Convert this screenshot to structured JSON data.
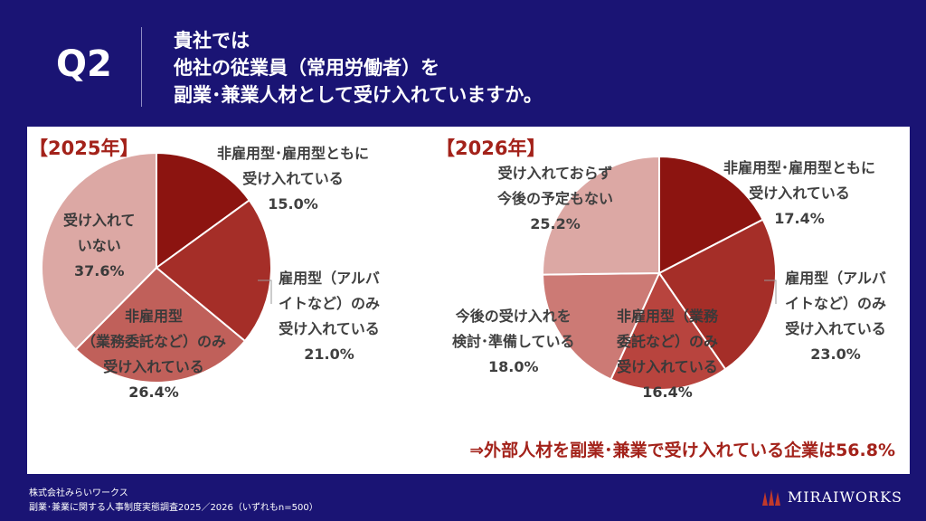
{
  "header": {
    "q_label": "Q2",
    "question_lines": [
      "貴社では",
      "他社の従業員（常用労働者）を",
      "副業･兼業人材として受け入れていますか。"
    ]
  },
  "conclusion": "⇒外部人材を副業･兼業で受け入れている企業は56.8%",
  "footer": {
    "company": "株式会社みらいワークス",
    "source": "副業･兼業に関する人事制度実態調査2025／2026（いずれもn=500）"
  },
  "logo": {
    "text": "MIRAIWORKS",
    "icon": "miraiworks-logo-icon"
  },
  "chart_data": [
    {
      "type": "pie",
      "title": "【2025年】",
      "slices": [
        {
          "label_lines": [
            "非雇用型･雇用型ともに",
            "受け入れている"
          ],
          "value": 15.0,
          "pct_text": "15.0%",
          "color": "#8c1410"
        },
        {
          "label_lines": [
            "雇用型（アルバ",
            "イトなど）のみ",
            "受け入れている"
          ],
          "value": 21.0,
          "pct_text": "21.0%",
          "color": "#a52e28"
        },
        {
          "label_lines": [
            "非雇用型",
            "（業務委託など）のみ",
            "受け入れている"
          ],
          "value": 26.4,
          "pct_text": "26.4%",
          "color": "#c0605a"
        },
        {
          "label_lines": [
            "受け入れて",
            "いない"
          ],
          "value": 37.6,
          "pct_text": "37.6%",
          "color": "#dca8a4"
        }
      ]
    },
    {
      "type": "pie",
      "title": "【2026年】",
      "slices": [
        {
          "label_lines": [
            "非雇用型･雇用型ともに",
            "受け入れている"
          ],
          "value": 17.4,
          "pct_text": "17.4%",
          "color": "#8c1410"
        },
        {
          "label_lines": [
            "雇用型（アルバ",
            "イトなど）のみ",
            "受け入れている"
          ],
          "value": 23.0,
          "pct_text": "23.0%",
          "color": "#a52e28"
        },
        {
          "label_lines": [
            "非雇用型（業務",
            "委託など）のみ",
            "受け入れている"
          ],
          "value": 16.4,
          "pct_text": "16.4%",
          "color": "#b8443e"
        },
        {
          "label_lines": [
            "今後の受け入れを",
            "検討･準備している"
          ],
          "value": 18.0,
          "pct_text": "18.0%",
          "color": "#cc7a75"
        },
        {
          "label_lines": [
            "受け入れておらず",
            "今後の予定もない"
          ],
          "value": 25.2,
          "pct_text": "25.2%",
          "color": "#dca8a4"
        }
      ]
    }
  ]
}
